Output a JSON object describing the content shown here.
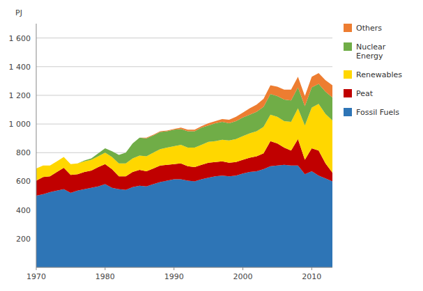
{
  "chart_data": {
    "type": "area",
    "stacked": true,
    "y_label": "PJ",
    "x": [
      1970,
      1971,
      1972,
      1973,
      1974,
      1975,
      1976,
      1977,
      1978,
      1979,
      1980,
      1981,
      1982,
      1983,
      1984,
      1985,
      1986,
      1987,
      1988,
      1989,
      1990,
      1991,
      1992,
      1993,
      1994,
      1995,
      1996,
      1997,
      1998,
      1999,
      2000,
      2001,
      2002,
      2003,
      2004,
      2005,
      2006,
      2007,
      2008,
      2009,
      2010,
      2011,
      2012,
      2013
    ],
    "series": [
      {
        "name": "Fossil Fuels",
        "color": "#2E75B6",
        "values": [
          500,
          510,
          525,
          535,
          545,
          520,
          535,
          545,
          555,
          565,
          580,
          555,
          545,
          540,
          560,
          570,
          565,
          580,
          595,
          605,
          615,
          615,
          605,
          600,
          615,
          625,
          635,
          640,
          635,
          640,
          655,
          665,
          670,
          685,
          705,
          710,
          715,
          710,
          710,
          650,
          670,
          640,
          620,
          600
        ]
      },
      {
        "name": "Peat",
        "color": "#C00000",
        "values": [
          105,
          120,
          110,
          130,
          150,
          125,
          115,
          120,
          120,
          135,
          140,
          130,
          90,
          95,
          105,
          110,
          105,
          110,
          115,
          110,
          105,
          110,
          100,
          100,
          100,
          105,
          100,
          100,
          95,
          95,
          95,
          100,
          105,
          110,
          175,
          155,
          120,
          105,
          185,
          100,
          160,
          175,
          105,
          60
        ]
      },
      {
        "name": "Renewables",
        "color": "#FFD700",
        "values": [
          85,
          80,
          75,
          75,
          75,
          75,
          75,
          75,
          75,
          75,
          80,
          85,
          90,
          90,
          95,
          100,
          105,
          110,
          115,
          120,
          125,
          130,
          130,
          135,
          140,
          145,
          145,
          150,
          155,
          160,
          165,
          170,
          175,
          185,
          185,
          185,
          185,
          200,
          215,
          240,
          285,
          325,
          345,
          365
        ]
      },
      {
        "name": "Nuclear\nEnergy",
        "color": "#70AD47",
        "values": [
          0,
          0,
          0,
          0,
          0,
          0,
          0,
          5,
          10,
          20,
          30,
          40,
          60,
          75,
          105,
          125,
          125,
          120,
          120,
          115,
          115,
          110,
          115,
          115,
          120,
          115,
          125,
          125,
          120,
          125,
          130,
          130,
          135,
          140,
          145,
          145,
          150,
          150,
          145,
          135,
          140,
          140,
          155,
          160
        ]
      },
      {
        "name": "Others",
        "color": "#ED7D31",
        "values": [
          0,
          0,
          0,
          0,
          0,
          0,
          0,
          0,
          0,
          0,
          0,
          0,
          0,
          0,
          0,
          0,
          5,
          5,
          5,
          5,
          5,
          10,
          10,
          10,
          10,
          15,
          15,
          20,
          25,
          30,
          35,
          45,
          50,
          55,
          60,
          65,
          70,
          75,
          75,
          70,
          75,
          75,
          80,
          85
        ]
      }
    ],
    "xlim": [
      1970,
      2013
    ],
    "xticks": [
      1970,
      1980,
      1990,
      2000,
      2010
    ],
    "ylim": [
      0,
      1700
    ],
    "yticks": [
      {
        "value": 0,
        "label": ""
      },
      200,
      400,
      600,
      800,
      {
        "value": 1000,
        "label": "1 000"
      },
      {
        "value": 1200,
        "label": "1 200"
      },
      {
        "value": 1400,
        "label": "1 400"
      },
      {
        "value": 1600,
        "label": "1 600"
      }
    ],
    "grid": true,
    "legend": "right"
  }
}
